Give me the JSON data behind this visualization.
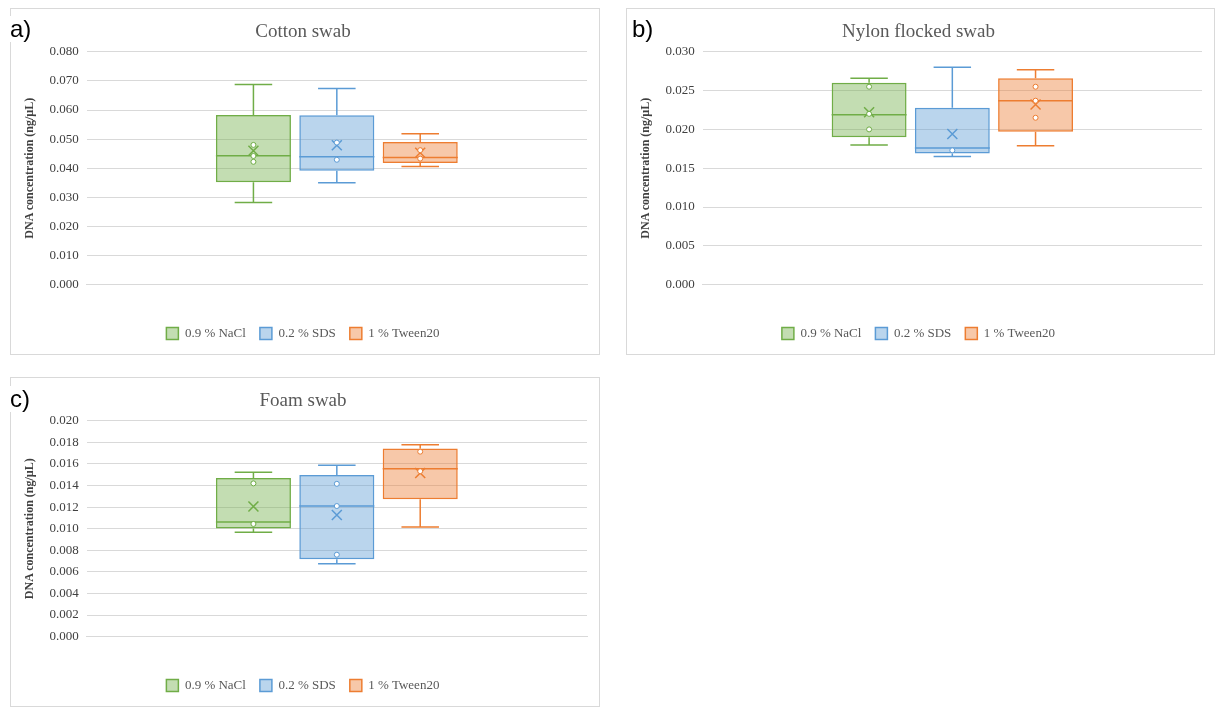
{
  "chart_data": [
    {
      "type": "box",
      "title": "Cotton swab",
      "ylabel": "DNA concentration (ng/µL)",
      "annotations": [
        "a)"
      ],
      "categories": [
        null
      ],
      "grid": "y",
      "legend": "bottom",
      "ylim": [
        0,
        0.08
      ],
      "yticks": [
        {
          "value": 0,
          "label": "0.000"
        },
        {
          "value": 0.01,
          "label": "0.010"
        },
        {
          "value": 0.02,
          "label": "0.020"
        },
        {
          "value": 0.03,
          "label": "0.030"
        },
        {
          "value": 0.04,
          "label": "0.040"
        },
        {
          "value": 0.05,
          "label": "0.050"
        },
        {
          "value": 0.06,
          "label": "0.060"
        },
        {
          "value": 0.07,
          "label": "0.070"
        },
        {
          "value": 0.08,
          "label": "0.080"
        }
      ],
      "series": [
        {
          "name": "0.9 % NaCl",
          "color": "#70ad47",
          "boxes": [
            {
              "low": 0.0282,
              "q1": 0.0352,
              "median": 0.0443,
              "q3": 0.0583,
              "high": 0.0688,
              "mean": 0.046,
              "outliers": [
                0.048,
                0.0442,
                0.0422
              ]
            }
          ]
        },
        {
          "name": "0.2 % SDS",
          "color": "#5b9bd5",
          "boxes": [
            {
              "low": 0.035,
              "q1": 0.0391,
              "median": 0.0439,
              "q3": 0.0582,
              "high": 0.0674,
              "mean": 0.0479,
              "outliers": [
                0.0488,
                0.0429
              ]
            }
          ]
        },
        {
          "name": "1 % Tween20",
          "color": "#ed7d31",
          "boxes": [
            {
              "low": 0.0406,
              "q1": 0.0418,
              "median": 0.0437,
              "q3": 0.049,
              "high": 0.0518,
              "mean": 0.0453,
              "outliers": [
                0.0462,
                0.0433
              ]
            }
          ]
        }
      ]
    },
    {
      "type": "box",
      "title": "Nylon flocked swab",
      "ylabel": "DNA concentration (ng/µL)",
      "annotations": [
        "b)"
      ],
      "categories": [
        null
      ],
      "grid": "y",
      "legend": "bottom",
      "ylim": [
        0,
        0.03
      ],
      "yticks": [
        {
          "value": 0,
          "label": "0.000"
        },
        {
          "value": 0.005,
          "label": "0.005"
        },
        {
          "value": 0.01,
          "label": "0.010"
        },
        {
          "value": 0.015,
          "label": "0.015"
        },
        {
          "value": 0.02,
          "label": "0.020"
        },
        {
          "value": 0.025,
          "label": "0.025"
        },
        {
          "value": 0.03,
          "label": "0.030"
        }
      ],
      "series": [
        {
          "name": "0.9 % NaCl",
          "color": "#70ad47",
          "boxes": [
            {
              "low": 0.018,
              "q1": 0.019,
              "median": 0.0219,
              "q3": 0.026,
              "high": 0.0266,
              "mean": 0.0222,
              "outliers": [
                0.0255,
                0.022,
                0.02
              ]
            }
          ]
        },
        {
          "name": "0.2 % SDS",
          "color": "#5b9bd5",
          "boxes": [
            {
              "low": 0.0165,
              "q1": 0.0169,
              "median": 0.0176,
              "q3": 0.0228,
              "high": 0.028,
              "mean": 0.0194,
              "outliers": [
                0.0173
              ]
            }
          ]
        },
        {
          "name": "1 % Tween20",
          "color": "#ed7d31",
          "boxes": [
            {
              "low": 0.0179,
              "q1": 0.0197,
              "median": 0.0237,
              "q3": 0.0266,
              "high": 0.0277,
              "mean": 0.0232,
              "outliers": [
                0.0255,
                0.0237,
                0.0215
              ]
            }
          ]
        }
      ]
    },
    {
      "type": "box",
      "title": "Foam swab",
      "ylabel": "DNA concentration (ng/µL)",
      "annotations": [
        "c)"
      ],
      "categories": [
        null
      ],
      "grid": "y",
      "legend": "bottom",
      "ylim": [
        0,
        0.02
      ],
      "yticks": [
        {
          "value": 0,
          "label": "0.000"
        },
        {
          "value": 0.002,
          "label": "0.002"
        },
        {
          "value": 0.004,
          "label": "0.004"
        },
        {
          "value": 0.006,
          "label": "0.006"
        },
        {
          "value": 0.008,
          "label": "0.008"
        },
        {
          "value": 0.01,
          "label": "0.010"
        },
        {
          "value": 0.012,
          "label": "0.012"
        },
        {
          "value": 0.014,
          "label": "0.014"
        },
        {
          "value": 0.016,
          "label": "0.016"
        },
        {
          "value": 0.018,
          "label": "0.018"
        },
        {
          "value": 0.02,
          "label": "0.020"
        }
      ],
      "series": [
        {
          "name": "0.9 % NaCl",
          "color": "#70ad47",
          "boxes": [
            {
              "low": 0.00968,
              "q1": 0.01003,
              "median": 0.01063,
              "q3": 0.0147,
              "high": 0.01524,
              "mean": 0.01206,
              "outliers": [
                0.0142,
                0.01044
              ]
            }
          ]
        },
        {
          "name": "0.2 % SDS",
          "color": "#5b9bd5",
          "boxes": [
            {
              "low": 0.00676,
              "q1": 0.00717,
              "median": 0.0121,
              "q3": 0.01498,
              "high": 0.01587,
              "mean": 0.01127,
              "outliers": [
                0.01416,
                0.0121,
                0.00759
              ]
            }
          ]
        },
        {
          "name": "1 % Tween20",
          "color": "#ed7d31",
          "boxes": [
            {
              "low": 0.01016,
              "q1": 0.01273,
              "median": 0.01556,
              "q3": 0.01743,
              "high": 0.01778,
              "mean": 0.01517,
              "outliers": [
                0.01714,
                0.01533
              ]
            }
          ]
        }
      ]
    }
  ]
}
